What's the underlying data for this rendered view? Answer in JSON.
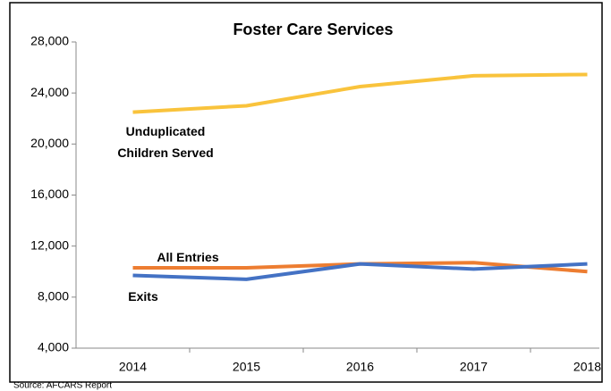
{
  "chart_data": {
    "type": "line",
    "title": "Foster Care Services",
    "categories": [
      "2014",
      "2015",
      "2016",
      "2017",
      "2018"
    ],
    "series": [
      {
        "name": "Unduplicated Children Served",
        "color": "#f9c33c",
        "values": [
          22500,
          23000,
          24500,
          25350,
          25450
        ]
      },
      {
        "name": "All Entries",
        "color": "#ed7d31",
        "values": [
          10300,
          10300,
          10600,
          10700,
          10000
        ]
      },
      {
        "name": "Exits",
        "color": "#4472c4",
        "values": [
          9700,
          9400,
          10600,
          10200,
          10600
        ]
      }
    ],
    "ylim": [
      4000,
      28000
    ],
    "yticks": [
      {
        "value": 4000,
        "label": "4,000"
      },
      {
        "value": 8000,
        "label": "8,000"
      },
      {
        "value": 12000,
        "label": "12,000"
      },
      {
        "value": 16000,
        "label": "16,000"
      },
      {
        "value": 20000,
        "label": "20,000"
      },
      {
        "value": 24000,
        "label": "24,000"
      },
      {
        "value": 28000,
        "label": "28,000"
      }
    ],
    "grid": false,
    "source": "Source: AFCARS Report"
  }
}
